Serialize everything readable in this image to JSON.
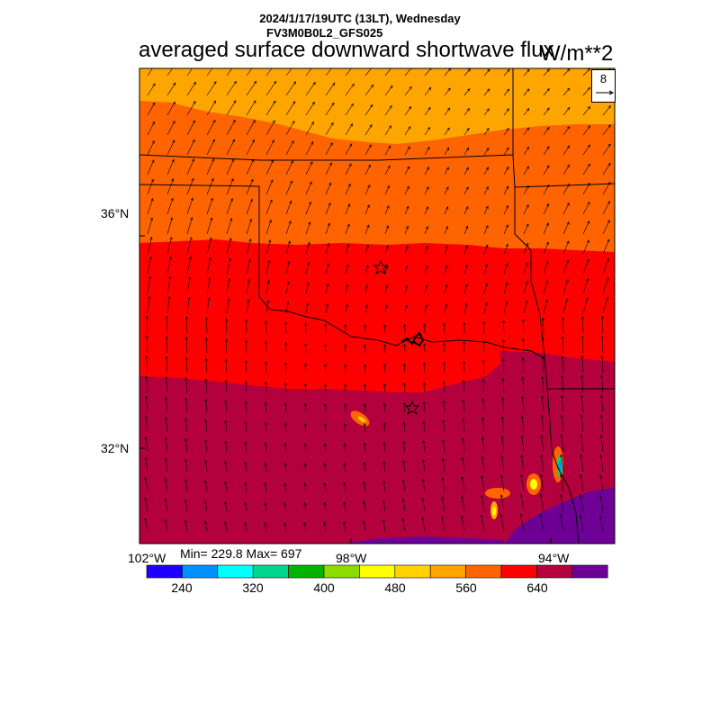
{
  "header": {
    "datetime": "2024/1/17/19UTC (13LT), Wednesday",
    "model": "FV3M0B0L2_GFS025",
    "title": "averaged surface downward shortwave flux",
    "units": "W/m**2"
  },
  "stats": {
    "text": "Min= 229.8 Max= 697",
    "min": 229.8,
    "max": 697
  },
  "map": {
    "lat_labels": [
      "36°N",
      "32°N"
    ],
    "lon_labels": [
      "102°W",
      "98°W",
      "94°W"
    ],
    "vector_reference": {
      "value": "8"
    },
    "markers": [
      {
        "type": "star",
        "name": "city-marker"
      },
      {
        "type": "star",
        "name": "city-marker"
      }
    ]
  },
  "colorbar": {
    "labels": [
      "240",
      "320",
      "400",
      "480",
      "560",
      "640"
    ],
    "colors": [
      "#1e00ff",
      "#0091ff",
      "#00ffff",
      "#00d78c",
      "#00b400",
      "#8cdc00",
      "#ffff00",
      "#ffd200",
      "#ffa500",
      "#ff6400",
      "#ff0000",
      "#b4003c",
      "#6e0096"
    ]
  },
  "field_colors": {
    "band_top": "#ffa500",
    "band_upper": "#ff6400",
    "band_middle": "#ff0000",
    "band_lower": "#b4003c",
    "band_se": "#6e0096"
  }
}
